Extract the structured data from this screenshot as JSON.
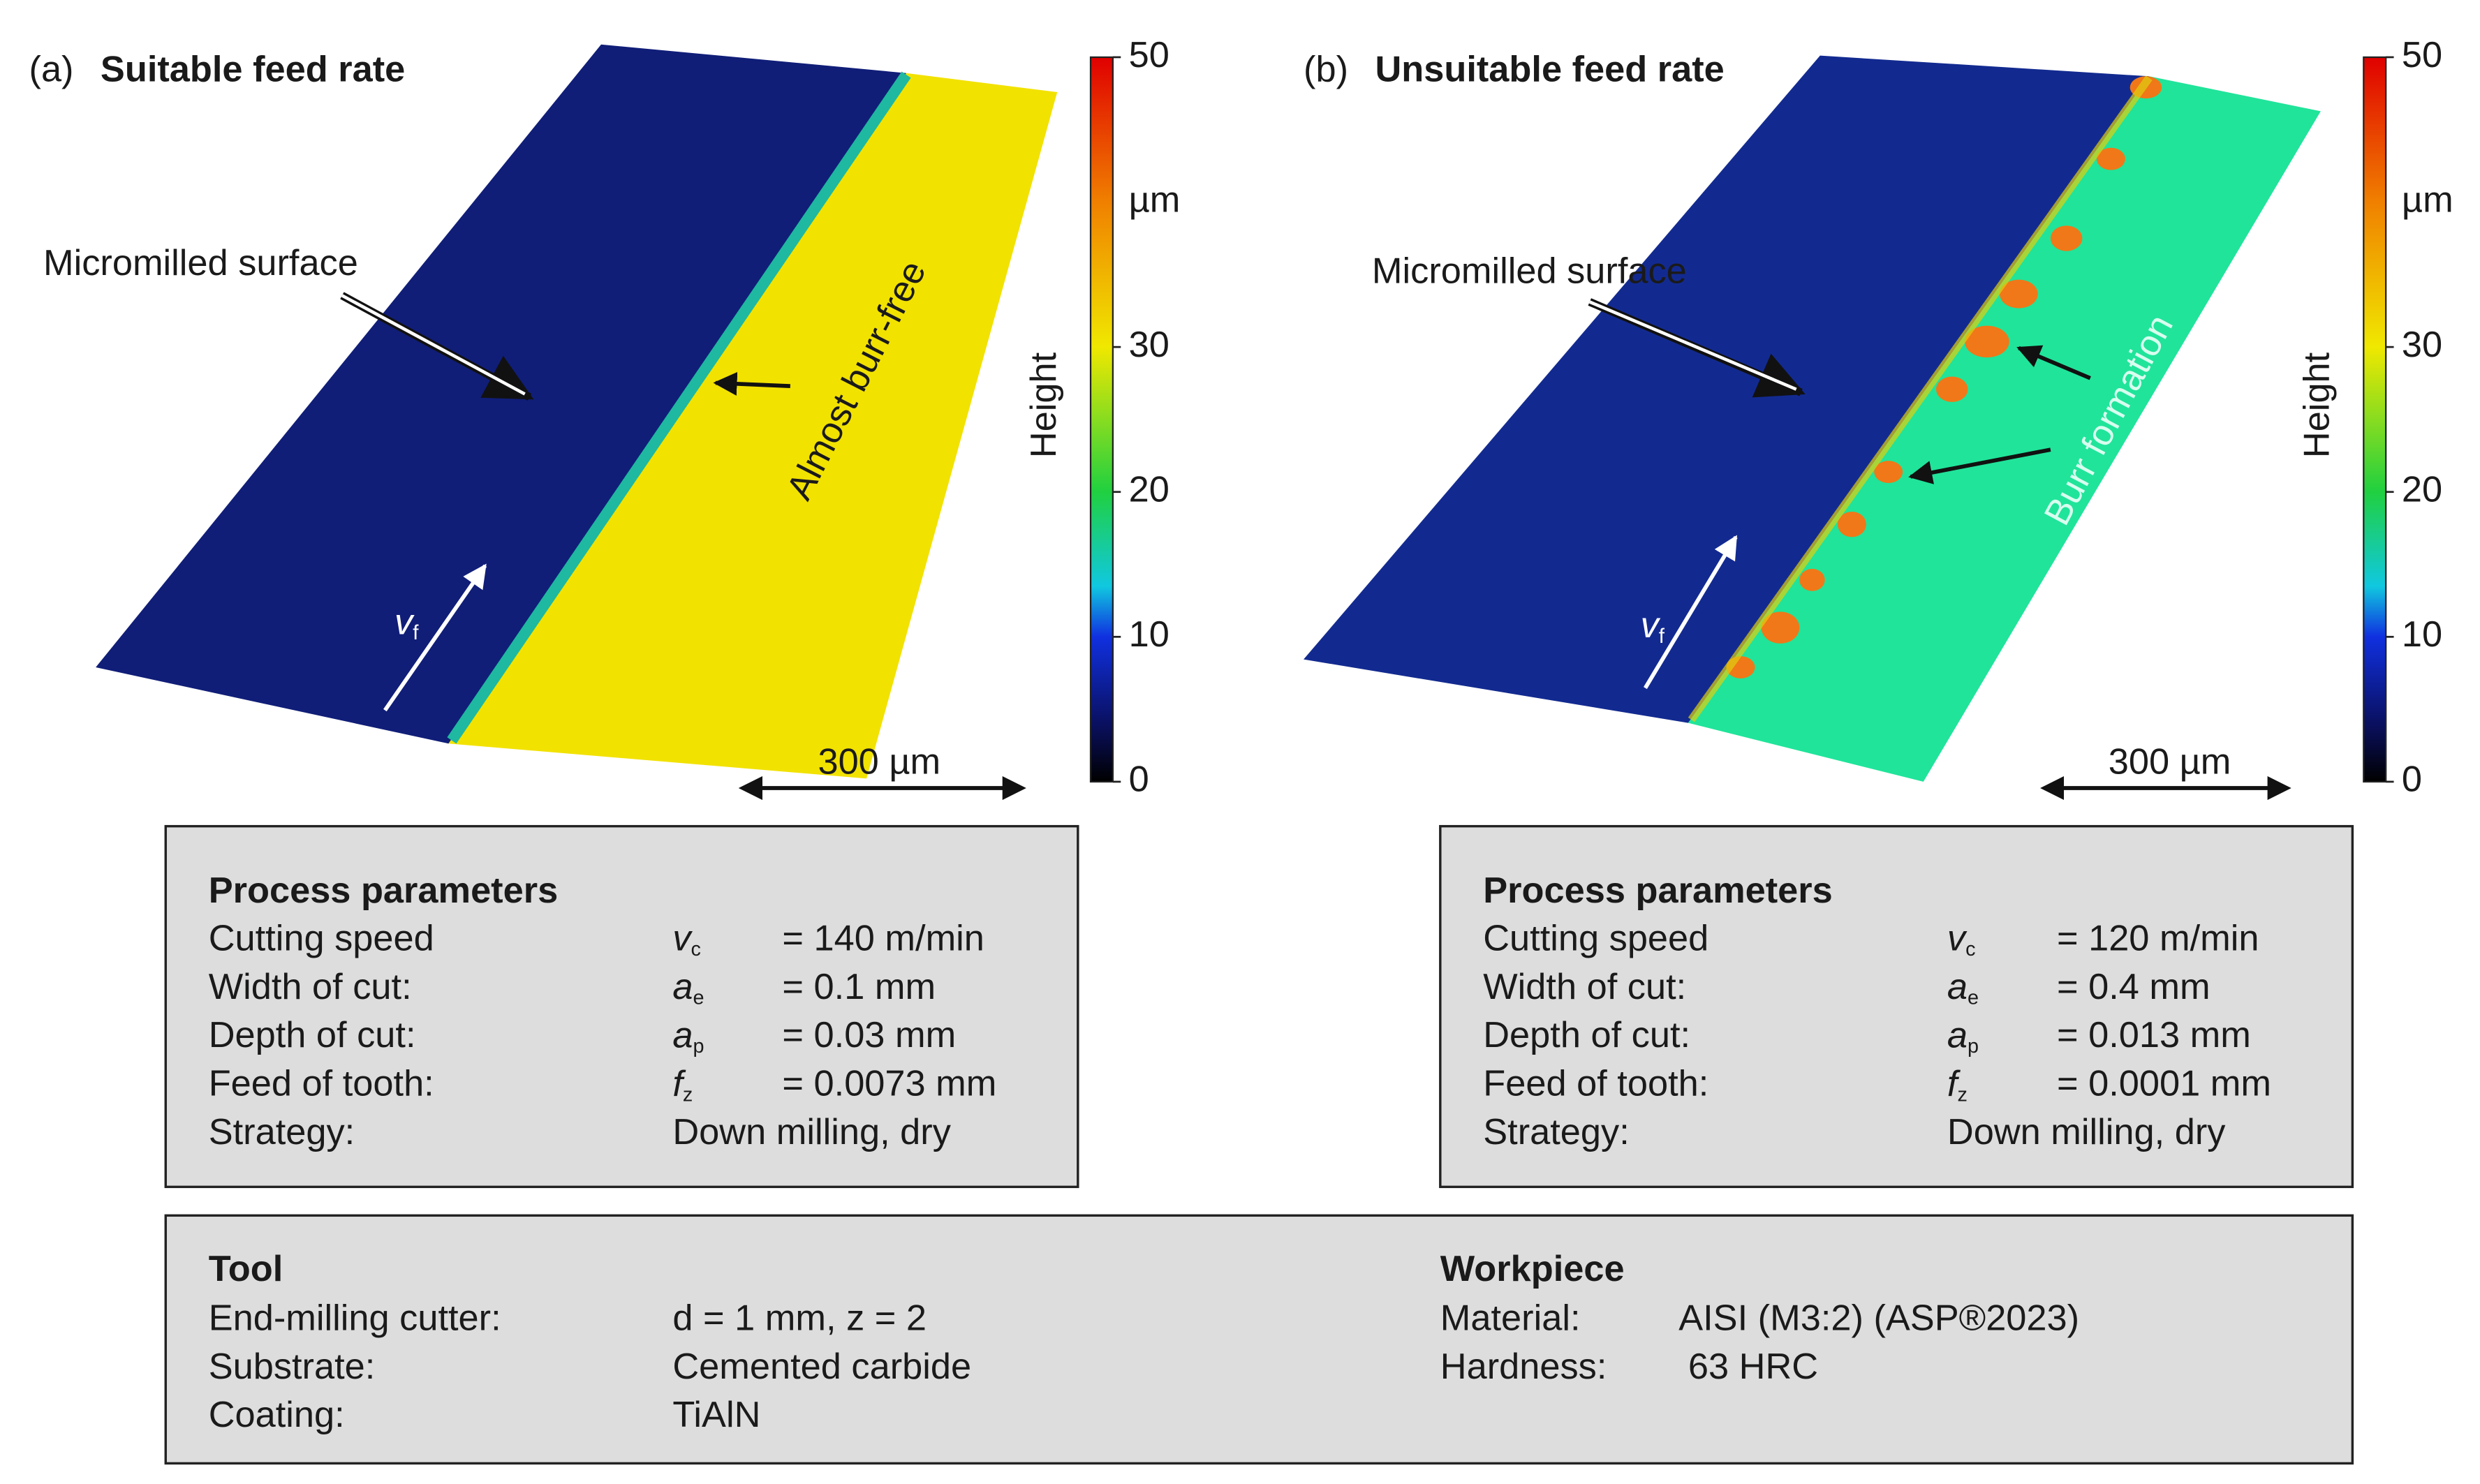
{
  "panels": [
    {
      "label": "(a)",
      "title": "Suitable feed rate",
      "annotations": [
        "Micromilled surface",
        "Almost burr-free"
      ],
      "feed": {
        "symbol": "v",
        "sub": "f"
      },
      "scale_bar": "300 µm",
      "colorbar": {
        "label": "Height",
        "unit": "µm",
        "range": [
          0,
          50
        ],
        "ticks": [
          0,
          10,
          20,
          30,
          50
        ]
      },
      "parameters": {
        "title": "Process parameters",
        "rows": [
          {
            "label": "Cutting speed",
            "symbol": "v",
            "sub": "c",
            "value": "= 140 m/min"
          },
          {
            "label": "Width of cut:",
            "symbol": "a",
            "sub": "e",
            "value": "= 0.1 mm"
          },
          {
            "label": "Depth of cut:",
            "symbol": "a",
            "sub": "p",
            "value": "= 0.03 mm"
          },
          {
            "label": "Feed of tooth:",
            "symbol": "f",
            "sub": "z",
            "value": "= 0.0073 mm"
          },
          {
            "label": "Strategy:",
            "value": "Down milling, dry"
          }
        ]
      }
    },
    {
      "label": "(b)",
      "title": "Unsuitable feed rate",
      "annotations": [
        "Micromilled surface",
        "Burr formation"
      ],
      "feed": {
        "symbol": "v",
        "sub": "f"
      },
      "scale_bar": "300 µm",
      "colorbar": {
        "label": "Height",
        "unit": "µm",
        "range": [
          0,
          50
        ],
        "ticks": [
          0,
          10,
          20,
          30,
          50
        ]
      },
      "parameters": {
        "title": "Process parameters",
        "rows": [
          {
            "label": "Cutting speed",
            "symbol": "v",
            "sub": "c",
            "value": "= 120 m/min"
          },
          {
            "label": "Width of cut:",
            "symbol": "a",
            "sub": "e",
            "value": "= 0.4 mm"
          },
          {
            "label": "Depth of cut:",
            "symbol": "a",
            "sub": "p",
            "value": "= 0.013 mm"
          },
          {
            "label": "Feed of tooth:",
            "symbol": "f",
            "sub": "z",
            "value": "= 0.0001 mm"
          },
          {
            "label": "Strategy:",
            "value": "Down milling, dry"
          }
        ]
      }
    }
  ],
  "tool": {
    "title": "Tool",
    "rows": [
      {
        "label": "End-milling cutter:",
        "value": "d = 1 mm, z = 2"
      },
      {
        "label": "Substrate:",
        "value": "Cemented carbide"
      },
      {
        "label": "Coating:",
        "value": "TiAlN"
      }
    ]
  },
  "workpiece": {
    "title": "Workpiece",
    "rows": [
      {
        "label": "Material:",
        "value": "AISI (M3:2) (ASP®2023)"
      },
      {
        "label": "Hardness:",
        "value": "63 HRC"
      }
    ]
  }
}
